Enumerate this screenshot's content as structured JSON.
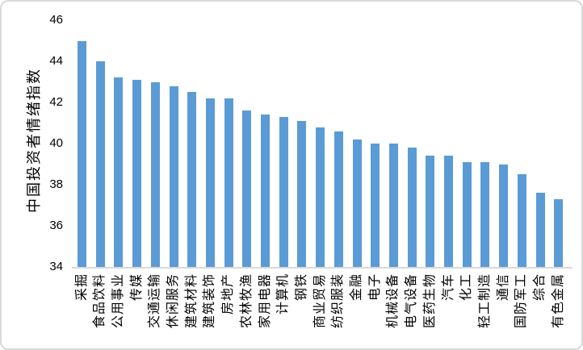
{
  "chart_data": {
    "type": "bar",
    "title": "",
    "xlabel": "",
    "ylabel": "中国投资者情绪指数",
    "ylim": [
      34,
      46
    ],
    "yticks": [
      34,
      36,
      38,
      40,
      42,
      44,
      46
    ],
    "grid": false,
    "legend_position": "none",
    "bar_color": "#5B9BD5",
    "categories": [
      "采掘",
      "食品饮料",
      "公用事业",
      "传媒",
      "交通运输",
      "休闲服务",
      "建筑材料",
      "建筑装饰",
      "房地产",
      "农林牧渔",
      "家用电器",
      "计算机",
      "钢铁",
      "商业贸易",
      "纺织服装",
      "金融",
      "电子",
      "机械设备",
      "电气设备",
      "医药生物",
      "汽车",
      "化工",
      "轻工制造",
      "通信",
      "国防军工",
      "综合",
      "有色金属"
    ],
    "values": [
      45.0,
      44.0,
      43.2,
      43.1,
      43.0,
      42.8,
      42.5,
      42.2,
      42.2,
      41.6,
      41.4,
      41.3,
      41.1,
      40.8,
      40.6,
      40.2,
      40.0,
      40.0,
      39.8,
      39.4,
      39.4,
      39.1,
      39.1,
      39.0,
      38.5,
      37.6,
      37.3
    ]
  },
  "colors": {
    "bar": "#5B9BD5",
    "axis_line": "#D9D9D9",
    "border": "#D9D9D9",
    "text": "#000000",
    "background": "#FFFFFF"
  }
}
